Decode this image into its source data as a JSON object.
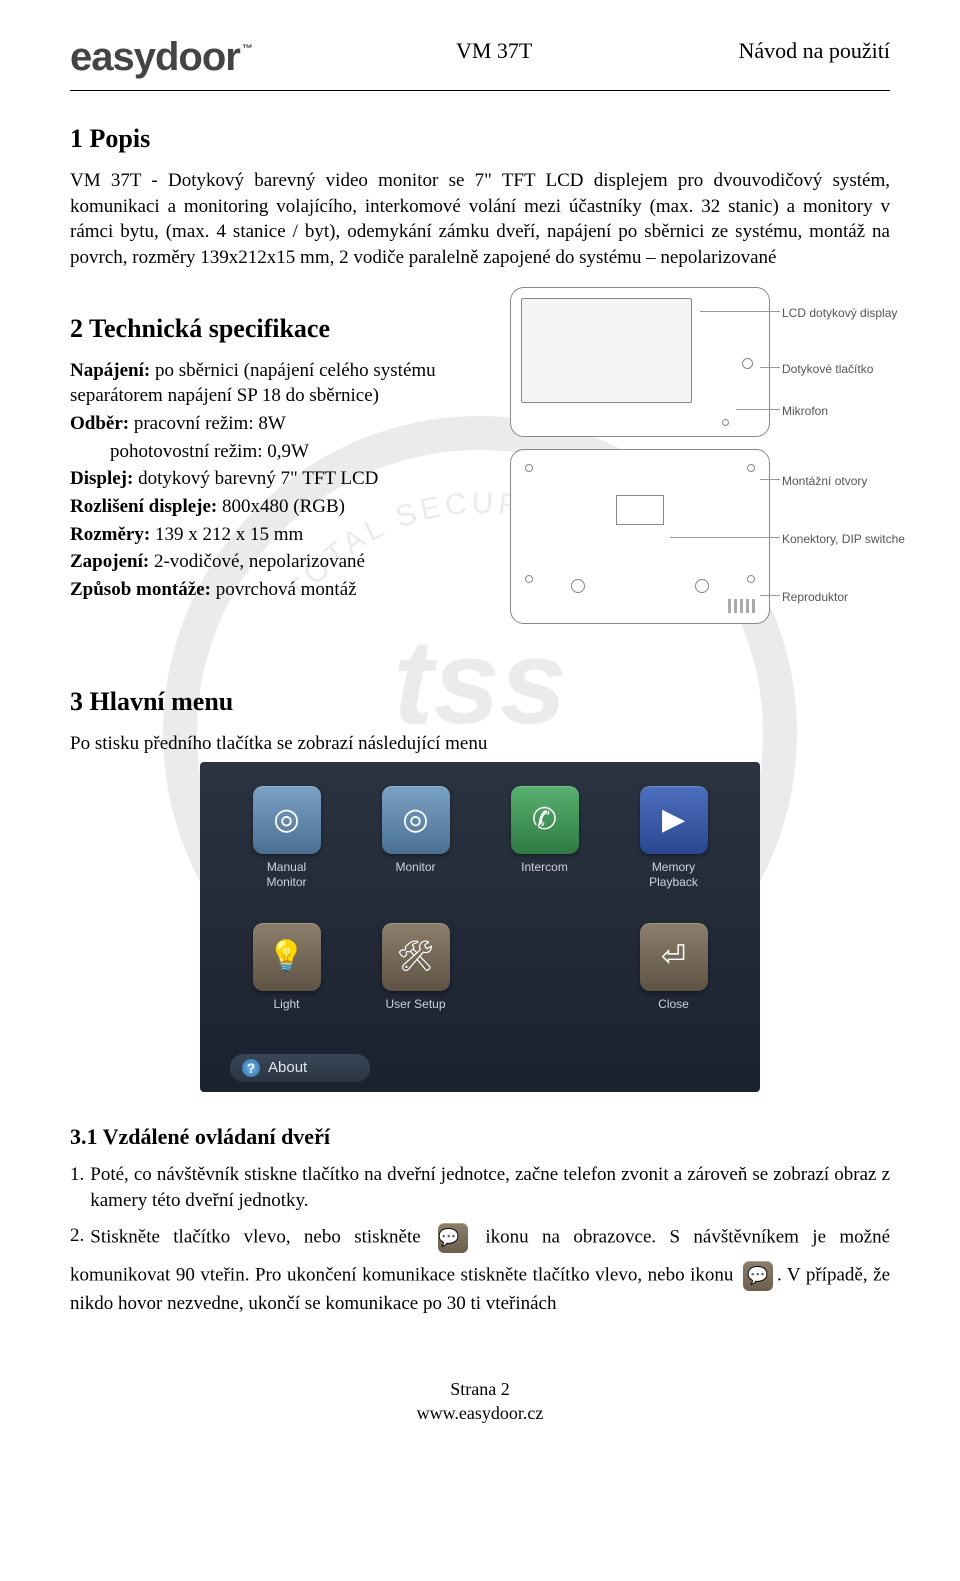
{
  "header": {
    "logo_main": "easydoor",
    "logo_tm": "™",
    "center": "VM 37T",
    "right": "Návod na použití"
  },
  "s1": {
    "heading": "1   Popis",
    "para": "VM 37T - Dotykový barevný video monitor se 7\" TFT LCD displejem pro dvouvodičový systém, komunikaci a monitoring volajícího, interkomové volání mezi účastníky (max. 32 stanic) a monitory v rámci bytu, (max. 4 stanice / byt), odemykání zámku dveří, napájení po sběrnici ze systému, montáž na povrch, rozměry 139x212x15 mm, 2 vodiče paralelně zapojené do systému – nepolarizované"
  },
  "s2": {
    "heading": "2   Technická specifikace",
    "lines": [
      {
        "b": "Napájení:",
        "t": " po sběrnici (napájení celého systému separátorem napájení SP 18 do sběrnice)"
      },
      {
        "b": "Odběr:",
        "t": " pracovní režim: 8W"
      },
      {
        "b": "",
        "t": "pohotovostní režim: 0,9W",
        "indent": true
      },
      {
        "b": "Displej:",
        "t": " dotykový barevný 7\" TFT LCD"
      },
      {
        "b": "Rozlišení displeje:",
        "t": " 800x480 (RGB)"
      },
      {
        "b": "Rozměry:",
        "t": " 139 x 212 x 15 mm"
      },
      {
        "b": "Zapojení:",
        "t": " 2-vodičové, nepolarizované"
      },
      {
        "b": "Způsob montáže:",
        "t": " povrchová montáž"
      }
    ],
    "callouts": {
      "lcd": "LCD dotykový display",
      "btn": "Dotykové tlačítko",
      "mic": "Mikrofon",
      "mount": "Montážní otvory",
      "conn": "Konektory, DIP switche",
      "spk": "Reproduktor"
    }
  },
  "s3": {
    "heading": "3   Hlavní menu",
    "caption": "Po stisku předního tlačítka se zobrazí následující menu",
    "menu": {
      "items": [
        {
          "label": "Manual\nMonitor",
          "bg": "linear-gradient(#7aa2c4,#4a6f92)",
          "glyph": "◎"
        },
        {
          "label": "Monitor",
          "bg": "linear-gradient(#7aa2c4,#4a6f92)",
          "glyph": "◎"
        },
        {
          "label": "Intercom",
          "bg": "linear-gradient(#58b16e,#2f7a45)",
          "glyph": "✆"
        },
        {
          "label": "Memory\nPlayback",
          "bg": "linear-gradient(#4d6fbf,#2a4790)",
          "glyph": "▶"
        },
        {
          "label": "Light",
          "bg": "linear-gradient(#8c7e6b,#5f5344)",
          "glyph": "💡"
        },
        {
          "label": "User Setup",
          "bg": "linear-gradient(#8c7e6b,#5f5344)",
          "glyph": "🛠"
        },
        {
          "label": "",
          "bg": "transparent",
          "glyph": ""
        },
        {
          "label": "Close",
          "bg": "linear-gradient(#8c7e6b,#5f5344)",
          "glyph": "⏎"
        }
      ],
      "about": "About"
    }
  },
  "s31": {
    "heading": "3.1   Vzdálené ovládaní dveří",
    "items": [
      "Poté, co návštěvník stiskne tlačítko na dveřní jednotce, začne telefon zvonit a zároveň se zobrazí obraz z kamery této dveřní jednotky.",
      "Stiskněte tlačítko vlevo, nebo stiskněte [ICON] ikonu na obrazovce. S návštěvníkem je možné komunikovat 90 vteřin. Pro ukončení komunikace stiskněte tlačítko vlevo, nebo ikonu [ICON]. V případě, že nikdo hovor nezvedne, ukončí se komunikace po 30 ti vteřinách"
    ],
    "item2_parts": {
      "p1": "Stiskněte tlačítko vlevo, nebo stiskněte ",
      "p2": " ikonu na obrazovce. S návštěvníkem je možné",
      "p3": "komunikovat 90 vteřin. Pro ukončení komunikace stiskněte tlačítko vlevo, nebo ikonu ",
      "p4": ". V případě, že nikdo hovor nezvedne, ukončí se komunikace po 30 ti vteřinách"
    }
  },
  "footer": {
    "page": "Strana 2",
    "url": "www.easydoor.cz"
  }
}
